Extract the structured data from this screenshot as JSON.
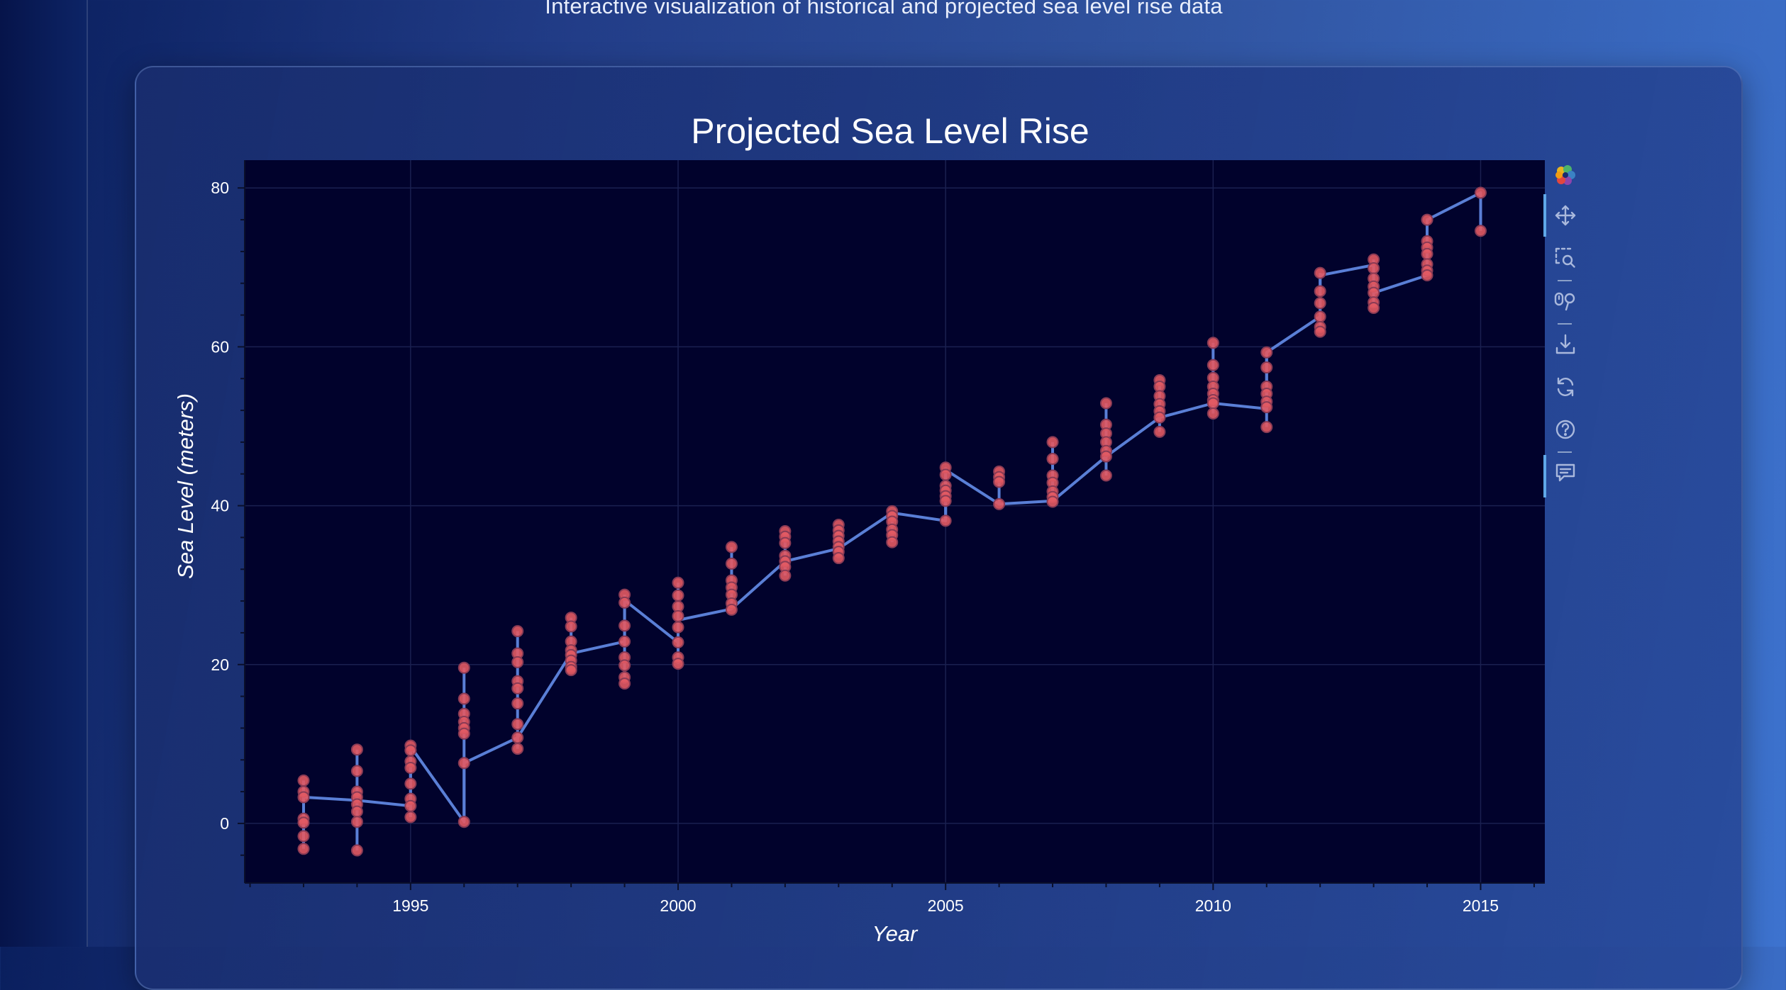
{
  "subtitle": "Interactive visualization of historical and projected sea level rise data",
  "chart_data": {
    "type": "line+scatter",
    "title": "Projected Sea Level Rise",
    "xlabel": "Year",
    "ylabel": "Sea Level (meters)",
    "xlim": [
      1991.9,
      2016.2
    ],
    "ylim": [
      -7.5,
      83.5
    ],
    "xticks": [
      1995,
      2000,
      2005,
      2010,
      2015
    ],
    "yticks": [
      0,
      20,
      40,
      60,
      80
    ],
    "grid": true,
    "colors": {
      "plot_bg": "#01022c",
      "line": "#5a7fd6",
      "marker_fill": "#e25a63",
      "marker_edge": "#8a3b55",
      "grid": "#1a2050"
    },
    "line": {
      "x": [
        1993,
        1993,
        1994,
        1994,
        1995,
        1995,
        1996,
        1996,
        1996,
        1997,
        1997,
        1998,
        1999,
        1999,
        2000,
        2000,
        2001,
        2002,
        2003,
        2004,
        2005,
        2005,
        2006,
        2007,
        2008,
        2009,
        2010,
        2011,
        2011,
        2012,
        2012,
        2013,
        2013,
        2014,
        2014,
        2015,
        2015
      ],
      "y": [
        3.3,
        3.3,
        2.9,
        2.9,
        2.2,
        9.7,
        0.2,
        7.6,
        7.6,
        10.8,
        10.8,
        21.4,
        22.9,
        28.1,
        22.8,
        25.6,
        27.0,
        33.0,
        34.6,
        39.1,
        38.1,
        44.5,
        40.2,
        40.6,
        46.2,
        51.1,
        52.9,
        52.2,
        59.3,
        63.8,
        69.0,
        70.3,
        66.8,
        69.0,
        76.0,
        79.4,
        74.6
      ]
    },
    "points": [
      {
        "x": 1993,
        "y": [
          5.4,
          4.0,
          3.3,
          0.6,
          0.1,
          -1.6,
          -3.2
        ]
      },
      {
        "x": 1994,
        "y": [
          9.3,
          6.6,
          4.0,
          3.3,
          2.4,
          1.5,
          0.2,
          -3.4
        ]
      },
      {
        "x": 1995,
        "y": [
          9.8,
          9.2,
          7.8,
          7.0,
          5.0,
          3.1,
          2.2,
          0.8
        ]
      },
      {
        "x": 1996,
        "y": [
          19.6,
          15.7,
          13.8,
          12.8,
          12.0,
          11.3,
          7.6,
          0.2
        ]
      },
      {
        "x": 1997,
        "y": [
          24.2,
          21.4,
          20.3,
          17.9,
          17.0,
          15.1,
          12.5,
          10.8,
          9.4
        ]
      },
      {
        "x": 1998,
        "y": [
          25.9,
          24.8,
          22.9,
          21.8,
          21.2,
          20.5,
          19.7,
          19.3
        ]
      },
      {
        "x": 1999,
        "y": [
          28.8,
          27.8,
          24.9,
          22.9,
          20.9,
          19.9,
          18.4,
          17.6
        ]
      },
      {
        "x": 2000,
        "y": [
          30.3,
          28.7,
          27.3,
          26.1,
          24.7,
          22.8,
          20.9,
          20.1
        ]
      },
      {
        "x": 2001,
        "y": [
          34.8,
          32.7,
          30.6,
          29.7,
          28.8,
          27.7,
          26.9
        ]
      },
      {
        "x": 2002,
        "y": [
          36.8,
          36.1,
          35.3,
          33.7,
          33.0,
          32.3,
          31.2
        ]
      },
      {
        "x": 2003,
        "y": [
          37.6,
          36.9,
          36.2,
          35.5,
          34.8,
          34.2,
          33.4
        ]
      },
      {
        "x": 2004,
        "y": [
          39.3,
          38.7,
          38.0,
          37.0,
          36.3,
          35.4
        ]
      },
      {
        "x": 2005,
        "y": [
          44.8,
          43.9,
          42.5,
          41.9,
          41.2,
          40.6,
          38.1
        ]
      },
      {
        "x": 2006,
        "y": [
          44.3,
          43.6,
          43.0,
          40.2
        ]
      },
      {
        "x": 2007,
        "y": [
          48.0,
          45.9,
          43.8,
          42.9,
          41.8,
          41.1,
          40.5
        ]
      },
      {
        "x": 2008,
        "y": [
          52.9,
          50.2,
          49.1,
          48.0,
          46.9,
          46.2,
          43.8
        ]
      },
      {
        "x": 2009,
        "y": [
          55.8,
          55.0,
          53.8,
          52.8,
          51.9,
          51.1,
          49.3
        ]
      },
      {
        "x": 2010,
        "y": [
          60.5,
          57.7,
          56.1,
          55.0,
          54.1,
          53.3,
          52.9,
          51.6
        ]
      },
      {
        "x": 2011,
        "y": [
          59.3,
          57.4,
          55.0,
          54.1,
          53.1,
          52.4,
          49.9
        ]
      },
      {
        "x": 2012,
        "y": [
          69.3,
          67.0,
          65.5,
          63.8,
          62.5,
          61.9
        ]
      },
      {
        "x": 2013,
        "y": [
          71.0,
          69.9,
          68.6,
          67.6,
          66.8,
          65.6,
          64.9
        ]
      },
      {
        "x": 2014,
        "y": [
          76.0,
          73.3,
          72.5,
          71.7,
          70.4,
          69.6,
          69.0
        ]
      },
      {
        "x": 2015,
        "y": [
          79.4,
          74.6
        ]
      }
    ]
  },
  "toolbar": {
    "tools": [
      {
        "name": "bokeh-logo-icon",
        "interactable": false
      },
      {
        "name": "pan-icon",
        "active": true
      },
      {
        "name": "box-zoom-icon"
      },
      {
        "name": "wheel-zoom-icon"
      },
      {
        "name": "save-icon"
      },
      {
        "name": "reset-icon"
      },
      {
        "name": "help-icon"
      },
      {
        "name": "hover-icon",
        "active": true
      }
    ]
  }
}
